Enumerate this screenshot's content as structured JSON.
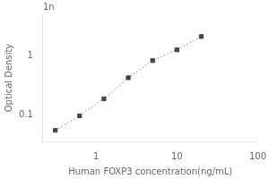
{
  "chart_data": {
    "type": "line",
    "x": [
      0.313,
      0.625,
      1.25,
      2.5,
      5.0,
      10.0,
      20.0
    ],
    "series": [
      {
        "values": [
          0.054,
          0.095,
          0.185,
          0.42,
          0.82,
          1.25,
          2.1
        ],
        "color": "#444444",
        "marker": "square",
        "line_style": "dotted"
      }
    ],
    "xlabel": "Human FOXP3 concentration(ng/mL)",
    "ylabel": "Optical Density",
    "xlim": [
      0.22,
      100
    ],
    "ylim": [
      0.035,
      5
    ],
    "xticks": [
      1,
      10,
      100
    ],
    "yticks": [
      0.1,
      1
    ],
    "log": true,
    "grid": false,
    "annotations": [
      "1n"
    ]
  }
}
